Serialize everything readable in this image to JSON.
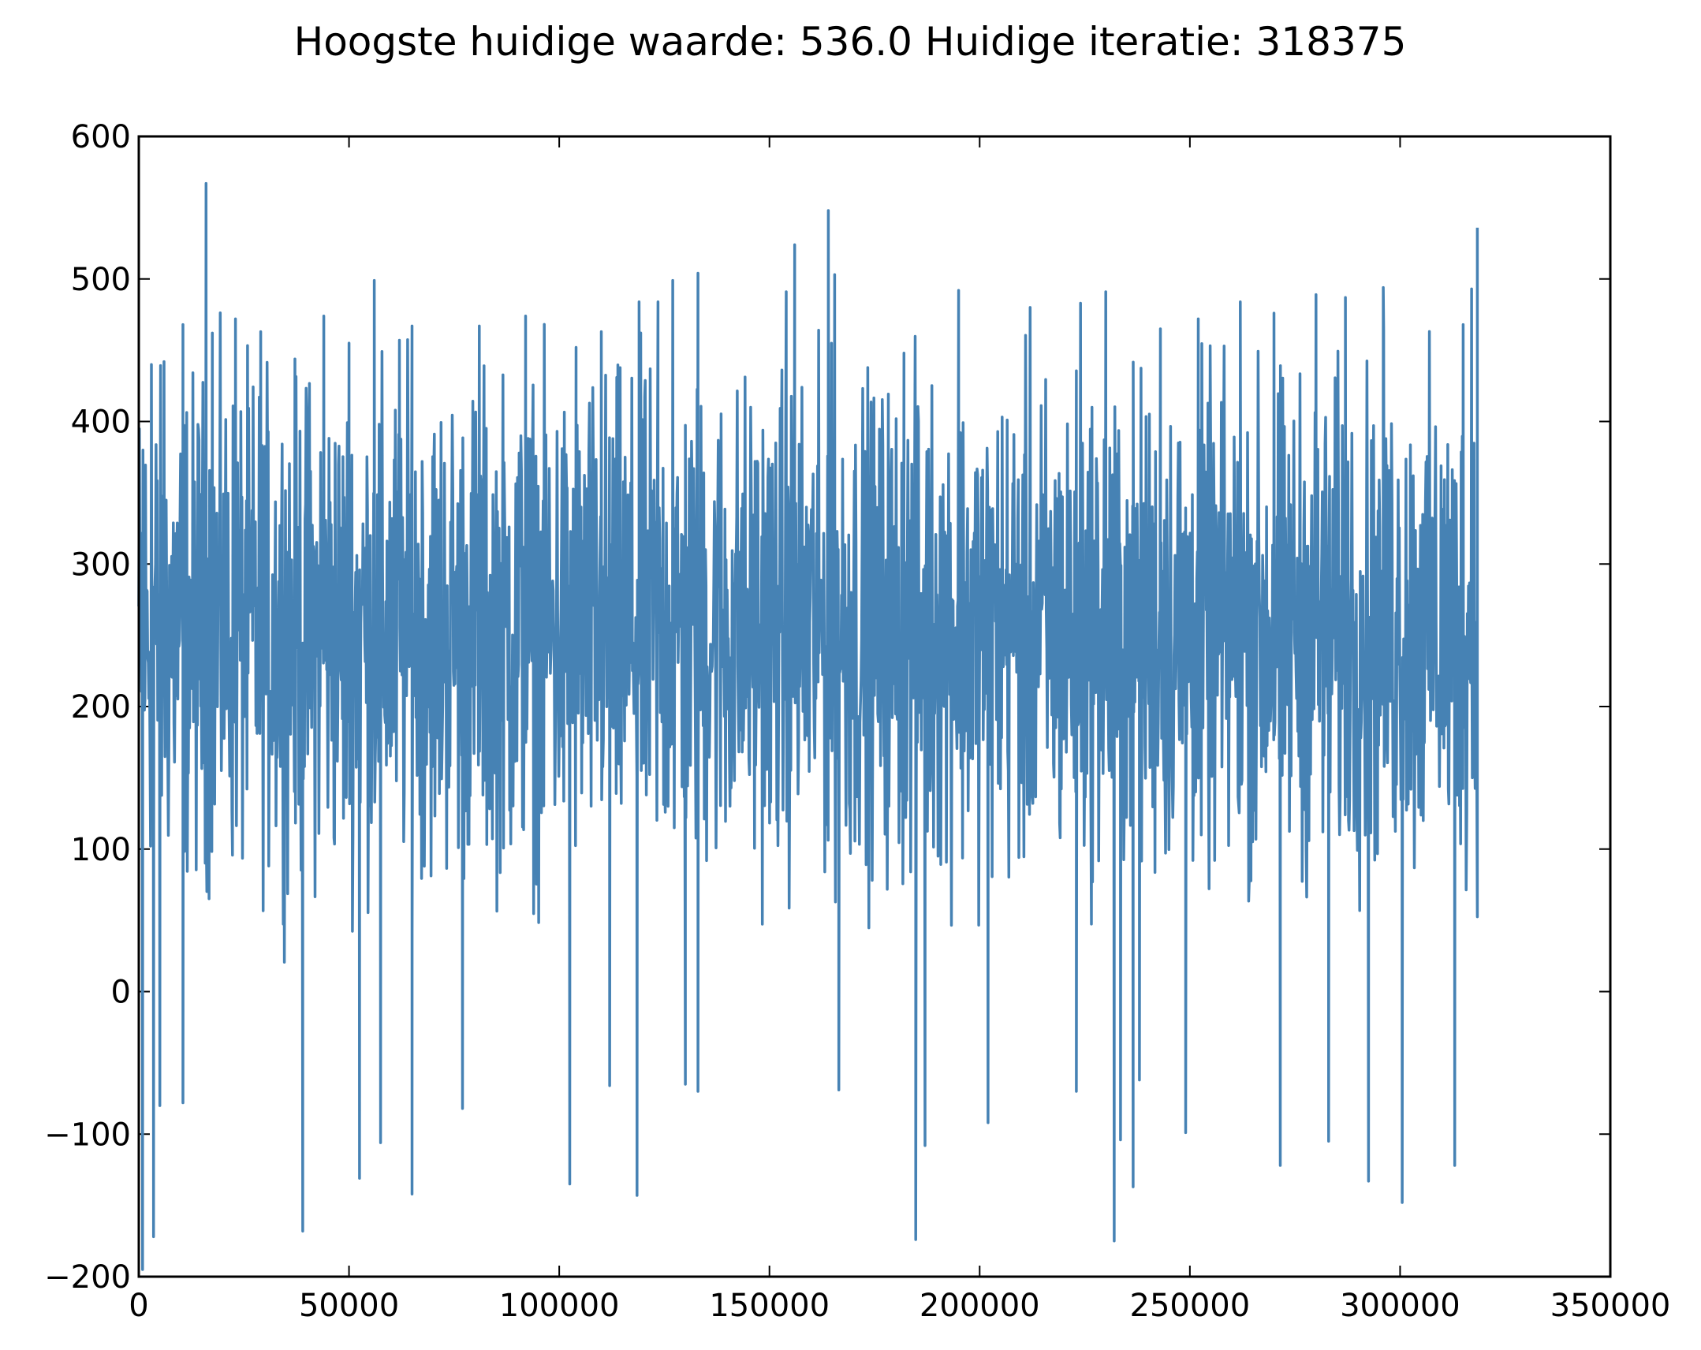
{
  "chart_data": {
    "type": "line",
    "title": "Hoogste huidige waarde: 536.0 Huidige iteratie: 318375",
    "xlabel": "",
    "ylabel": "",
    "xlim": [
      0,
      350000
    ],
    "ylim": [
      -200,
      600
    ],
    "x_ticks": [
      0,
      50000,
      100000,
      150000,
      200000,
      250000,
      300000,
      350000
    ],
    "x_tick_labels": [
      "0",
      "50000",
      "100000",
      "150000",
      "200000",
      "250000",
      "300000",
      "350000"
    ],
    "y_ticks": [
      -200,
      -100,
      0,
      100,
      200,
      300,
      400,
      500,
      600
    ],
    "y_tick_labels": [
      "−200",
      "−100",
      "0",
      "100",
      "200",
      "300",
      "400",
      "500",
      "600"
    ],
    "grid": false,
    "legend": "none",
    "line_color": "#4682b4",
    "series": [
      {
        "x_start": 0,
        "x_end": 318375,
        "dense_band": [
          40,
          470
        ],
        "peaks": [
          [
            1000,
            380
          ],
          [
            3000,
            440
          ],
          [
            6000,
            442
          ],
          [
            10500,
            468
          ],
          [
            16000,
            567
          ],
          [
            17500,
            462
          ],
          [
            23000,
            472
          ],
          [
            29000,
            463
          ],
          [
            44000,
            474
          ],
          [
            50000,
            455
          ],
          [
            56000,
            499
          ],
          [
            62000,
            457
          ],
          [
            65000,
            467
          ],
          [
            81000,
            467
          ],
          [
            92000,
            474
          ],
          [
            104000,
            452
          ],
          [
            110000,
            463
          ],
          [
            119000,
            484
          ],
          [
            123500,
            484
          ],
          [
            127000,
            499
          ],
          [
            133000,
            504
          ],
          [
            154000,
            491
          ],
          [
            156000,
            524
          ],
          [
            164000,
            548
          ],
          [
            165500,
            503
          ],
          [
            182000,
            448
          ],
          [
            195000,
            492
          ],
          [
            212000,
            480
          ],
          [
            224000,
            483
          ],
          [
            230000,
            491
          ],
          [
            243000,
            465
          ],
          [
            252000,
            472
          ],
          [
            262000,
            484
          ],
          [
            270000,
            476
          ],
          [
            280000,
            489
          ],
          [
            287000,
            487
          ],
          [
            296000,
            494
          ],
          [
            315000,
            468
          ],
          [
            317000,
            493
          ],
          [
            318375,
            536
          ]
        ],
        "troughs": [
          [
            900,
            -195
          ],
          [
            3500,
            -172
          ],
          [
            5000,
            -80
          ],
          [
            10500,
            -78
          ],
          [
            39000,
            -168
          ],
          [
            52500,
            -131
          ],
          [
            57500,
            -106
          ],
          [
            65000,
            -142
          ],
          [
            77000,
            -82
          ],
          [
            102500,
            -135
          ],
          [
            112000,
            -66
          ],
          [
            118500,
            -143
          ],
          [
            130000,
            -65
          ],
          [
            133000,
            -70
          ],
          [
            166500,
            -69
          ],
          [
            184800,
            -174
          ],
          [
            187000,
            -108
          ],
          [
            202000,
            -92
          ],
          [
            223000,
            -70
          ],
          [
            232000,
            -175
          ],
          [
            233500,
            -104
          ],
          [
            236500,
            -137
          ],
          [
            238000,
            -62
          ],
          [
            249000,
            -99
          ],
          [
            271500,
            -122
          ],
          [
            283000,
            -105
          ],
          [
            292500,
            -133
          ],
          [
            300500,
            -148
          ],
          [
            313000,
            -122
          ]
        ]
      }
    ]
  }
}
